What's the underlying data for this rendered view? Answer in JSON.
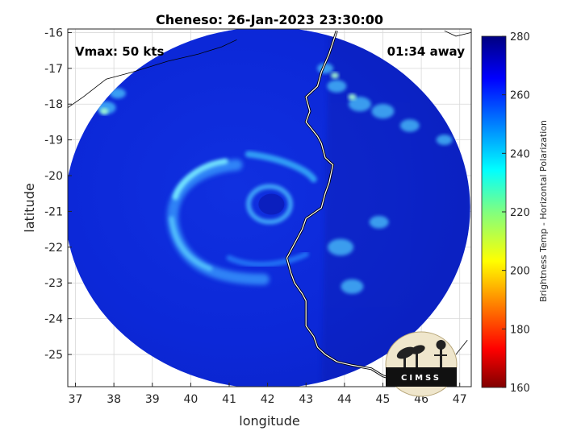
{
  "chart_data": {
    "type": "heatmap",
    "title": "Cheneso: 26-Jan-2023 23:30:00",
    "annotations": {
      "vmax": "Vmax: 50 kts",
      "time_away": "01:34 away"
    },
    "xlabel": "longitude",
    "ylabel": "latitude",
    "xlim": [
      36.8,
      47.3
    ],
    "ylim": [
      -25.9,
      -15.9
    ],
    "xticks": [
      37,
      38,
      39,
      40,
      41,
      42,
      43,
      44,
      45,
      46,
      47
    ],
    "yticks": [
      -16,
      -17,
      -18,
      -19,
      -20,
      -21,
      -22,
      -23,
      -24,
      -25
    ],
    "grid": true,
    "colorbar": {
      "label": "Brightness Temp - Horizontal Polarization",
      "range": [
        160,
        280
      ],
      "ticks": [
        160,
        180,
        200,
        220,
        240,
        260,
        280
      ],
      "colormap": "jet",
      "colors": [
        "#800000",
        "#ff0000",
        "#ff8000",
        "#ffff00",
        "#80ff80",
        "#00ffff",
        "#0080ff",
        "#0000ff",
        "#000080"
      ]
    },
    "swath": {
      "center": [
        42.0,
        -20.9
      ],
      "radius_lat": 5.0,
      "background_value": 265
    },
    "features": [
      {
        "name": "eye-center",
        "lon": 42.1,
        "lat": -20.8,
        "value": 270
      },
      {
        "name": "spiral-band",
        "value": 245
      },
      {
        "name": "eye-ring",
        "value": 252
      }
    ],
    "logo": "CIMSS"
  }
}
